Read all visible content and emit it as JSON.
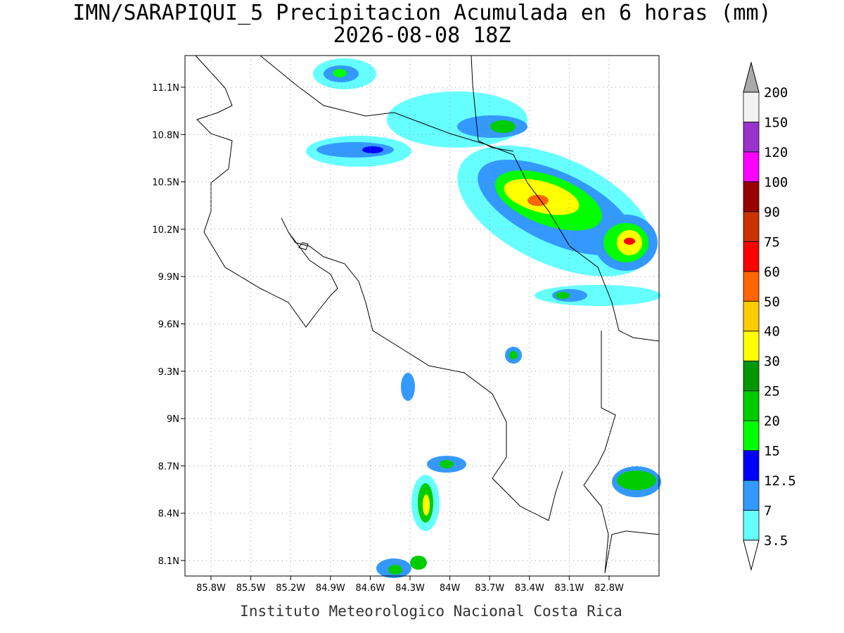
{
  "title": "IMN/SARAPIQUI_5 Precipitacion Acumulada en 6 horas (mm)",
  "subtitle": "2026-08-08 18Z",
  "map": {
    "lon_ticks": [
      "85.8W",
      "85.5W",
      "85.2W",
      "84.9W",
      "84.6W",
      "84.3W",
      "84W",
      "83.7W",
      "83.4W",
      "83.1W",
      "82.8W"
    ],
    "lat_ticks": [
      "11.1N",
      "10.8N",
      "10.5N",
      "10.2N",
      "9.9N",
      "9.6N",
      "9.3N",
      "9N",
      "8.7N",
      "8.4N",
      "8.1N"
    ]
  },
  "colorbar": {
    "labels": [
      "3.5",
      "7",
      "12.5",
      "15",
      "20",
      "25",
      "30",
      "40",
      "50",
      "60",
      "75",
      "90",
      "100",
      "120",
      "150",
      "200"
    ],
    "colors": [
      "#66ffff",
      "#3399ff",
      "#0000ff",
      "#00ff00",
      "#00cc00",
      "#009900",
      "#ffff00",
      "#ffcc00",
      "#ff6600",
      "#ff0000",
      "#cc3300",
      "#990000",
      "#ff00ff",
      "#9933cc",
      "#f2f2f2"
    ],
    "under_color": "#ffffff",
    "over_color": "#aaaaaa"
  },
  "footer": "Instituto Meteorologico Nacional Costa Rica"
}
